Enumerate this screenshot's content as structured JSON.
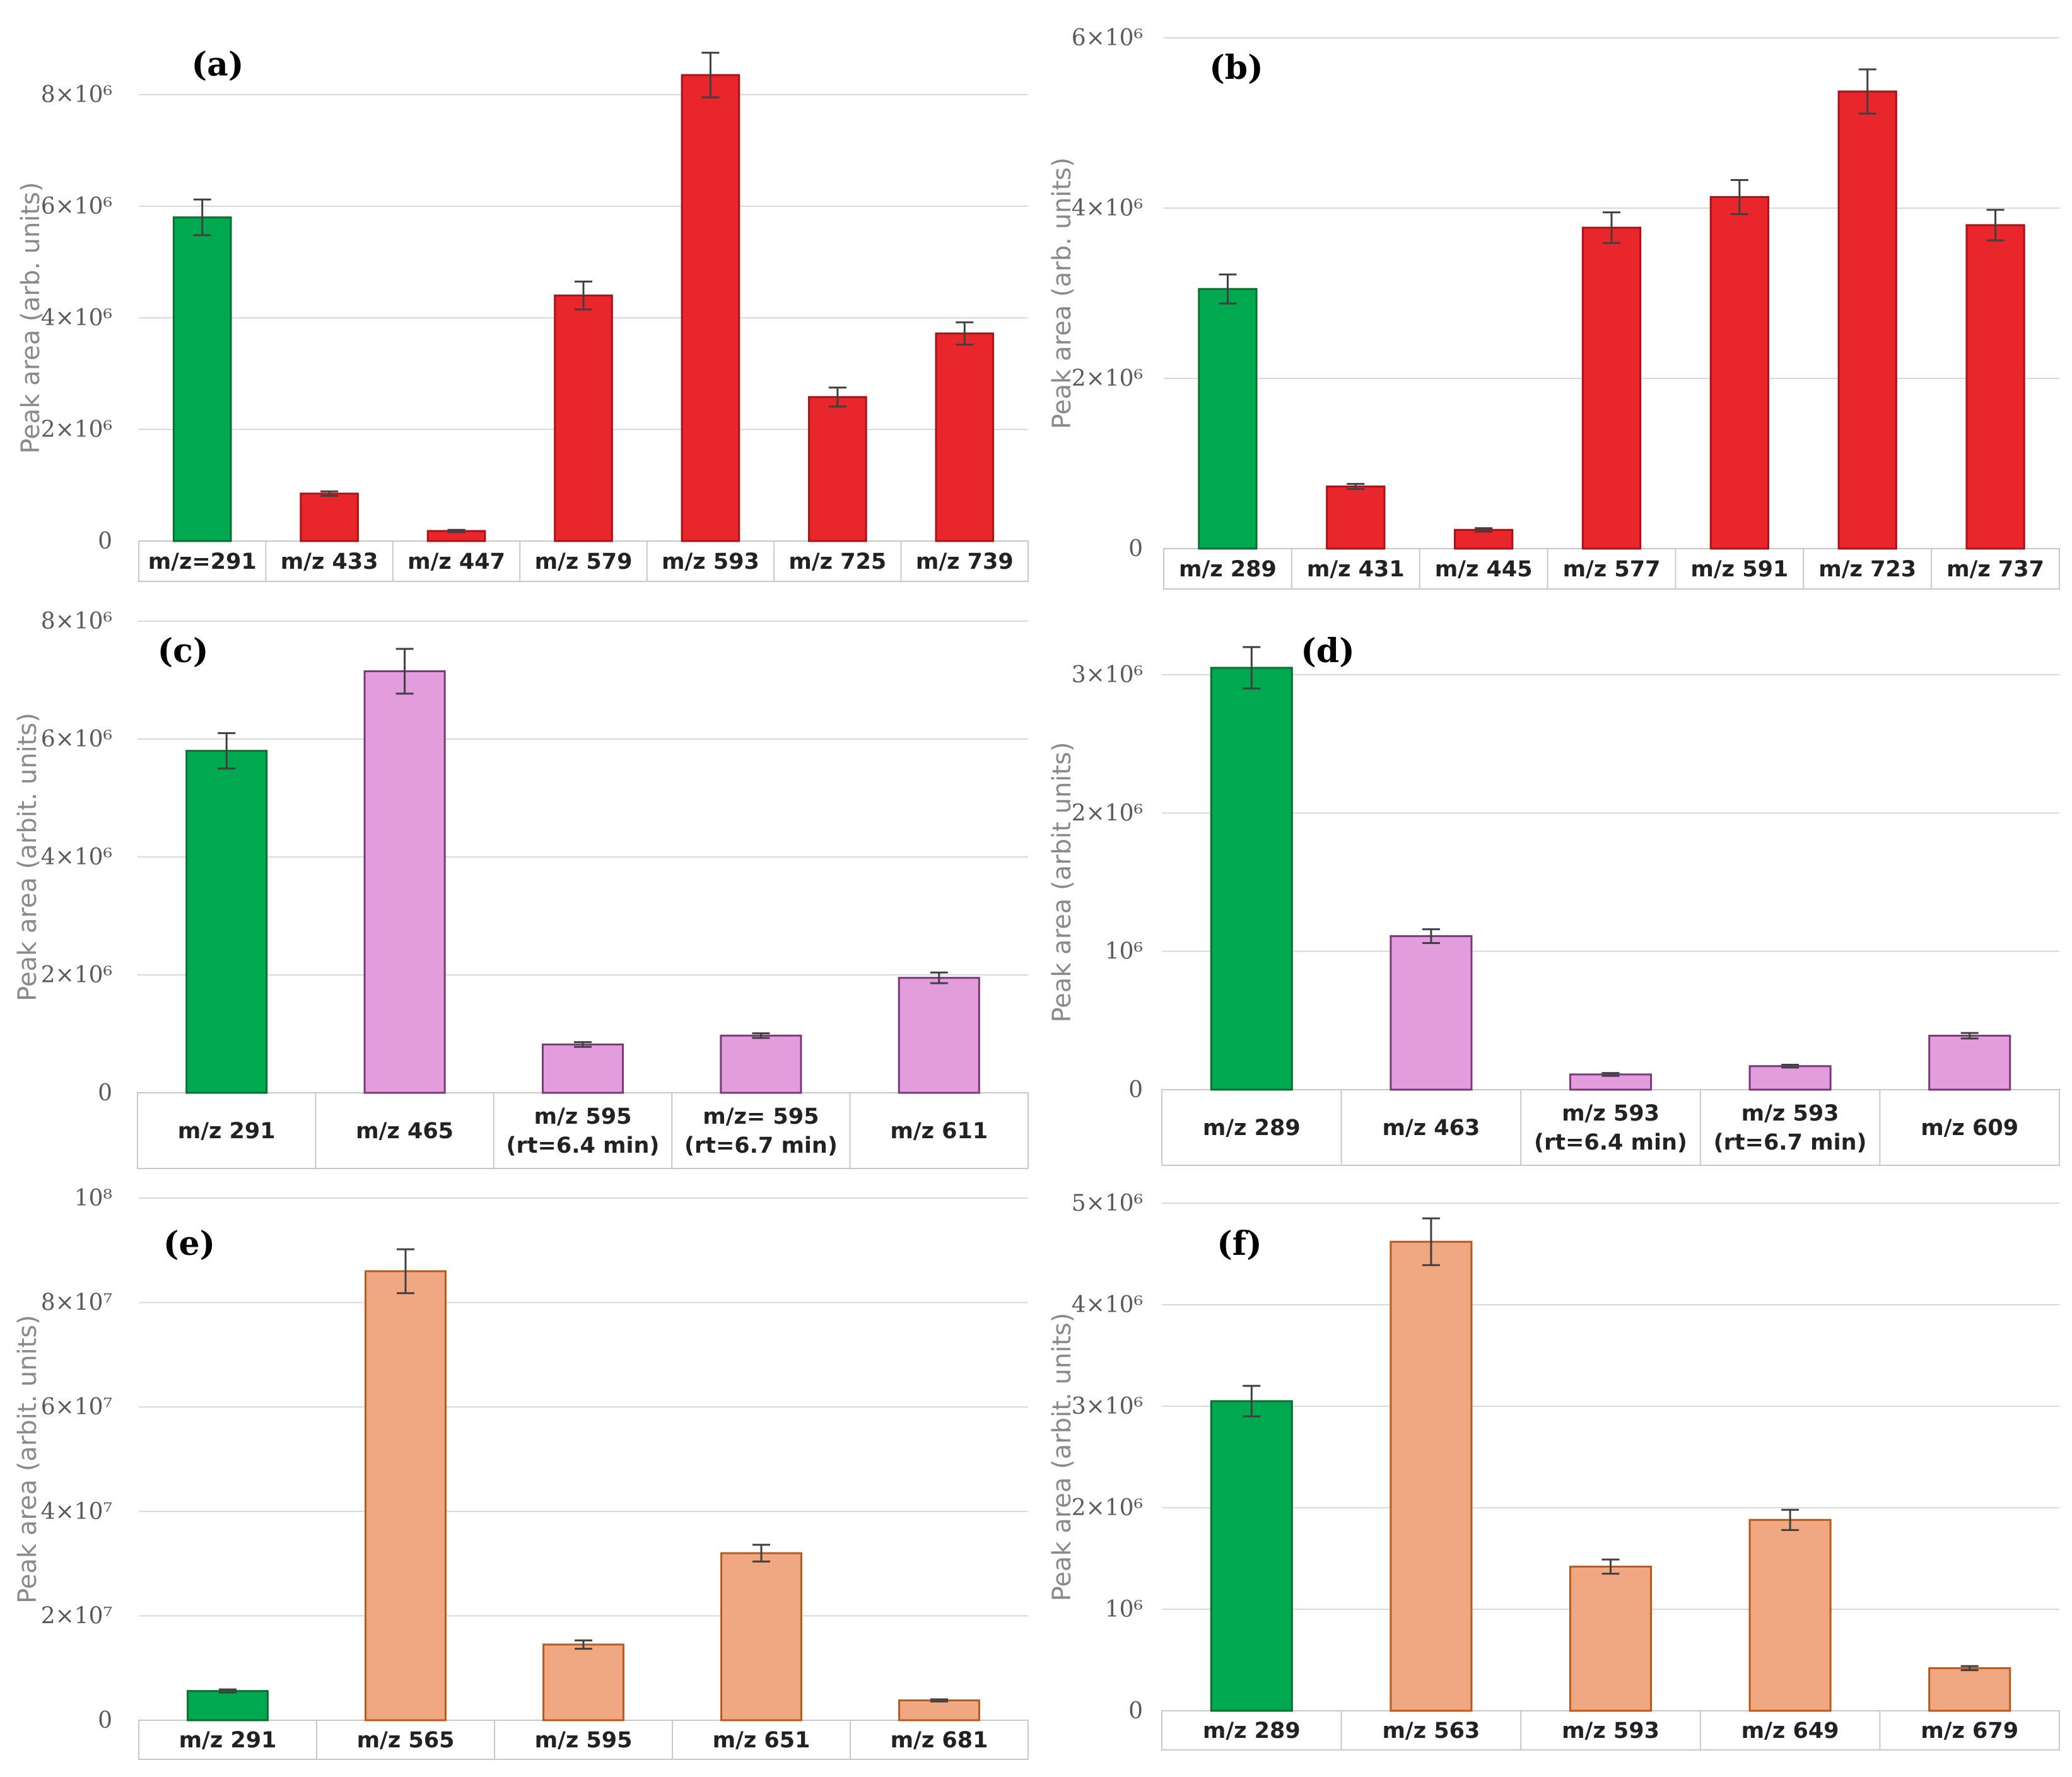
{
  "chart_data": [
    {
      "type": "bar",
      "panel_label": "(a)",
      "ylabel": "Peak area (arb. units)",
      "ylim": [
        0,
        8000000
      ],
      "yticks": [
        0,
        2000000,
        4000000,
        6000000,
        8000000
      ],
      "ytick_labels": [
        "0",
        "2×10⁶",
        "4×10⁶",
        "6×10⁶",
        "8×10⁶"
      ],
      "grid": true,
      "categories": [
        [
          "m/z=291"
        ],
        [
          "m/z 433"
        ],
        [
          "m/z 447"
        ],
        [
          "m/z 579"
        ],
        [
          "m/z 593"
        ],
        [
          "m/z 725"
        ],
        [
          "m/z 739"
        ]
      ],
      "values": [
        5800000,
        850000,
        180000,
        4400000,
        8350000,
        2580000,
        3720000
      ],
      "errors": [
        320000,
        40000,
        20000,
        250000,
        400000,
        170000,
        200000
      ],
      "bar_colors": [
        "#00a94f",
        "#e8262c",
        "#e8262c",
        "#e8262c",
        "#e8262c",
        "#e8262c",
        "#e8262c"
      ]
    },
    {
      "type": "bar",
      "panel_label": "(b)",
      "ylabel": "Peak area (arb. units)",
      "ylim": [
        0,
        6000000
      ],
      "yticks": [
        0,
        2000000,
        4000000,
        6000000
      ],
      "ytick_labels": [
        "0",
        "2×10⁶",
        "4×10⁶",
        "6×10⁶"
      ],
      "grid": true,
      "categories": [
        [
          "m/z 289"
        ],
        [
          "m/z 431"
        ],
        [
          "m/z 445"
        ],
        [
          "m/z 577"
        ],
        [
          "m/z 591"
        ],
        [
          "m/z 723"
        ],
        [
          "m/z 737"
        ]
      ],
      "values": [
        3050000,
        730000,
        220000,
        3770000,
        4130000,
        5370000,
        3800000
      ],
      "errors": [
        170000,
        30000,
        20000,
        180000,
        200000,
        260000,
        180000
      ],
      "bar_colors": [
        "#00a94f",
        "#e8262c",
        "#e8262c",
        "#e8262c",
        "#e8262c",
        "#e8262c",
        "#e8262c"
      ]
    },
    {
      "type": "bar",
      "panel_label": "(c)",
      "ylabel": "Peak area (arbit. units)",
      "ylim": [
        0,
        8000000
      ],
      "yticks": [
        0,
        2000000,
        4000000,
        6000000,
        8000000
      ],
      "ytick_labels": [
        "0",
        "2×10⁶",
        "4×10⁶",
        "6×10⁶",
        "8×10⁶"
      ],
      "grid": true,
      "categories": [
        [
          "m/z 291"
        ],
        [
          "m/z 465"
        ],
        [
          "m/z 595",
          "(rt=6.4 min)"
        ],
        [
          "m/z= 595",
          "(rt=6.7 min)"
        ],
        [
          "m/z 611"
        ]
      ],
      "values": [
        5800000,
        7150000,
        820000,
        970000,
        1950000
      ],
      "errors": [
        300000,
        380000,
        40000,
        40000,
        90000
      ],
      "bar_colors": [
        "#00a94f",
        "#e39ddc",
        "#e39ddc",
        "#e39ddc",
        "#e39ddc"
      ]
    },
    {
      "type": "bar",
      "panel_label": "(d)",
      "ylabel": "Peak area (arbit units)",
      "ylim": [
        0,
        3000000
      ],
      "yticks": [
        0,
        1000000,
        2000000,
        3000000
      ],
      "ytick_labels": [
        "0",
        "10⁶",
        "2×10⁶",
        "3×10⁶"
      ],
      "grid": true,
      "categories": [
        [
          "m/z 289"
        ],
        [
          "m/z 463"
        ],
        [
          "m/z 593",
          "(rt=6.4 min)"
        ],
        [
          "m/z 593",
          "(rt=6.7 min)"
        ],
        [
          "m/z 609"
        ]
      ],
      "values": [
        3050000,
        1110000,
        110000,
        170000,
        390000
      ],
      "errors": [
        150000,
        50000,
        10000,
        10000,
        20000
      ],
      "bar_colors": [
        "#00a94f",
        "#e39ddc",
        "#e39ddc",
        "#e39ddc",
        "#e39ddc"
      ]
    },
    {
      "type": "bar",
      "panel_label": "(e)",
      "ylabel": "Peak area (arbit. units)",
      "ylim": [
        0,
        100000000
      ],
      "yticks": [
        0,
        20000000,
        40000000,
        60000000,
        80000000,
        100000000
      ],
      "ytick_labels": [
        "0",
        "2×10⁷",
        "4×10⁷",
        "6×10⁷",
        "8×10⁷",
        "10⁸"
      ],
      "grid": true,
      "categories": [
        [
          "m/z 291"
        ],
        [
          "m/z 565"
        ],
        [
          "m/z 595"
        ],
        [
          "m/z 651"
        ],
        [
          "m/z 681"
        ]
      ],
      "values": [
        5600000,
        86000000,
        14500000,
        32000000,
        3800000
      ],
      "errors": [
        300000,
        4200000,
        800000,
        1600000,
        200000
      ],
      "bar_colors": [
        "#00a94f",
        "#f0a882",
        "#f0a882",
        "#f0a882",
        "#f0a882"
      ]
    },
    {
      "type": "bar",
      "panel_label": "(f)",
      "ylabel": "Peak area (arbit. units)",
      "ylim": [
        0,
        5000000
      ],
      "yticks": [
        0,
        1000000,
        2000000,
        3000000,
        4000000,
        5000000
      ],
      "ytick_labels": [
        "0",
        "10⁶",
        "2×10⁶",
        "3×10⁶",
        "4×10⁶",
        "5×10⁶"
      ],
      "grid": true,
      "categories": [
        [
          "m/z 289"
        ],
        [
          "m/z 563"
        ],
        [
          "m/z 593"
        ],
        [
          "m/z 649"
        ],
        [
          "m/z 679"
        ]
      ],
      "values": [
        3050000,
        4620000,
        1420000,
        1880000,
        420000
      ],
      "errors": [
        150000,
        230000,
        70000,
        100000,
        20000
      ],
      "bar_colors": [
        "#00a94f",
        "#f0a882",
        "#f0a882",
        "#f0a882",
        "#f0a882"
      ]
    }
  ]
}
